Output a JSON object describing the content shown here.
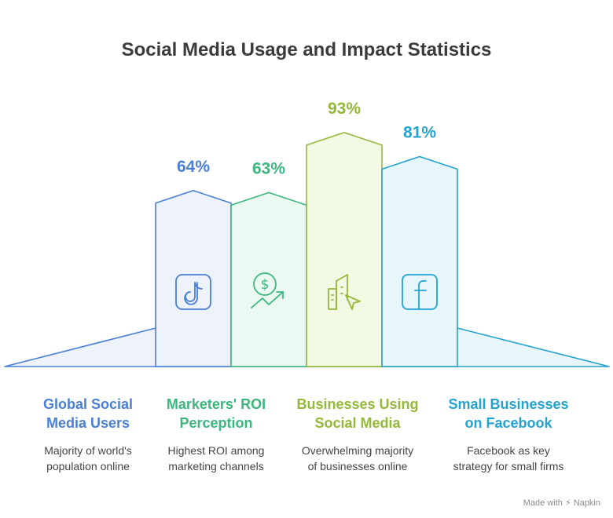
{
  "title": "Social Media Usage and Impact Statistics",
  "chart_data": {
    "type": "bar",
    "categories": [
      "Global Social Media Users",
      "Marketers' ROI Perception",
      "Businesses Using Social Media",
      "Small Businesses on Facebook"
    ],
    "values": [
      64,
      63,
      93,
      81
    ],
    "value_labels": [
      "64%",
      "63%",
      "93%",
      "81%"
    ],
    "ylabel": "",
    "xlabel": ""
  },
  "items": [
    {
      "title_line1": "Global Social",
      "title_line2": "Media Users",
      "desc_line1": "Majority of world's",
      "desc_line2": "population online",
      "icon": "tiktok-icon",
      "color": "#4a7fd6",
      "fill": "#eef2fb"
    },
    {
      "title_line1": "Marketers' ROI",
      "title_line2": "Perception",
      "desc_line1": "Highest ROI among",
      "desc_line2": "marketing channels",
      "icon": "dollar-growth-icon",
      "color": "#3bb77e",
      "fill": "#eafaf2"
    },
    {
      "title_line1": "Businesses Using",
      "title_line2": "Social Media",
      "desc_line1": "Overwhelming majority",
      "desc_line2": "of businesses online",
      "icon": "building-cursor-icon",
      "color": "#93b83a",
      "fill": "#f3fae3"
    },
    {
      "title_line1": "Small Businesses",
      "title_line2": "on Facebook",
      "desc_line1": "Facebook as key",
      "desc_line2": "strategy for small firms",
      "icon": "facebook-icon",
      "color": "#23a3cf",
      "fill": "#e7f6fb"
    }
  ],
  "footer": "Made with ⚡ Napkin"
}
